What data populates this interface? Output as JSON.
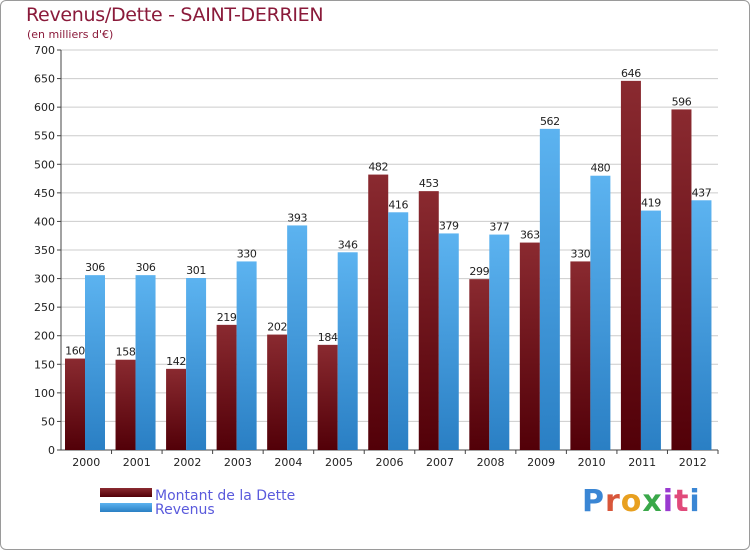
{
  "header": {
    "title": "Revenus/Dette - SAINT-DERRIEN",
    "subtitle": "(en milliers d'€)"
  },
  "logo": {
    "text": "Proxiti"
  },
  "colors": {
    "dette": "#6e1218",
    "revenus": "#4aa3e6",
    "grid": "#cccccc",
    "title": "#8a1a3a",
    "legend_text": "#5a5adc"
  },
  "chart_data": {
    "type": "bar",
    "title": "Revenus/Dette - SAINT-DERRIEN",
    "subtitle": "(en milliers d'€)",
    "xlabel": "",
    "ylabel": "",
    "categories": [
      "2000",
      "2001",
      "2002",
      "2003",
      "2004",
      "2005",
      "2006",
      "2007",
      "2008",
      "2009",
      "2010",
      "2011",
      "2012"
    ],
    "series": [
      {
        "name": "Montant de la Dette",
        "values": [
          160,
          158,
          142,
          219,
          202,
          184,
          482,
          453,
          299,
          363,
          330,
          646,
          596
        ]
      },
      {
        "name": "Revenus",
        "values": [
          306,
          306,
          301,
          330,
          393,
          346,
          416,
          379,
          377,
          562,
          480,
          419,
          437
        ]
      }
    ],
    "ylim": [
      0,
      700
    ],
    "yticks": [
      0,
      50,
      100,
      150,
      200,
      250,
      300,
      350,
      400,
      450,
      500,
      550,
      600,
      650,
      700
    ],
    "grid": true,
    "legend": "bottom-left"
  }
}
